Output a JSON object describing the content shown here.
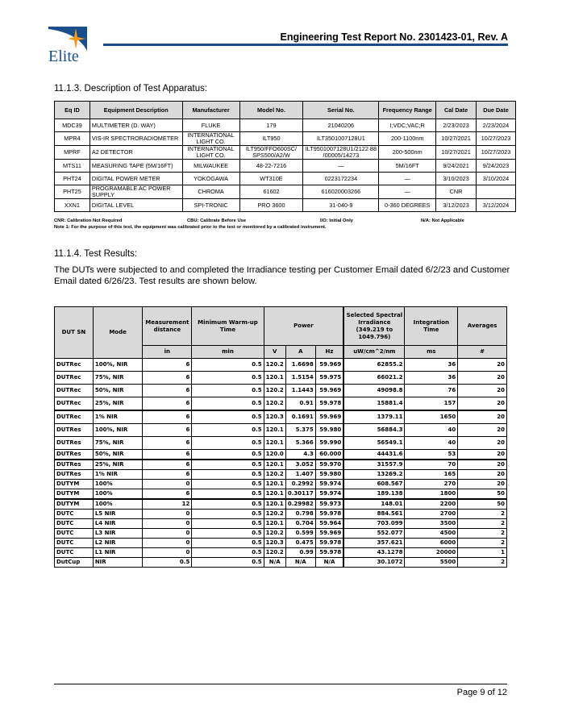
{
  "header": {
    "logo_text": "Elite",
    "title": "Engineering Test Report No. 2301423-01, Rev. A"
  },
  "apparatus": {
    "heading": "11.1.3.  Description of Test Apparatus:",
    "columns": [
      "Eq ID",
      "Equipment Description",
      "Manufacturer",
      "Model No.",
      "Serial No.",
      "Frequency Range",
      "Cal Date",
      "Due Date"
    ],
    "rows": [
      [
        "MDC39",
        "MULTIMETER (D. WAY)",
        "FLUKE",
        "179",
        "21040206",
        "I;VDC;VAC;R",
        "2/23/2023",
        "2/23/2024"
      ],
      [
        "MPR4",
        "VIS-IR SPECTRORADIOMETER",
        "INTERNATIONAL LIGHT CO.",
        "ILT950",
        "ILT3501007128U1",
        "200-1100nm",
        "10/27/2021",
        "10/27/2023"
      ],
      [
        "MPRF",
        "A2 DETECTOR",
        "INTERNATIONAL LIGHT CO.",
        "ILT950/FFO600SC/ SPS500/A2/W",
        "ILT9501007128U1/2122 88 /00005/14273",
        "200-500nm",
        "10/27/2021",
        "10/27/2023"
      ],
      [
        "MTS11",
        "MEASURING TAPE (5M/16FT)",
        "MILWAUKEE",
        "48-22-7216",
        "—",
        "5M/16FT",
        "9/24/2021",
        "9/24/2023"
      ],
      [
        "PHT24",
        "DIGITAL POWER METER",
        "YOKOGAWA",
        "WT310E",
        "0223172234",
        "—",
        "3/10/2023",
        "3/10/2024"
      ],
      [
        "PHT25",
        "PROGRAMABLE AC POWER SUPPLY",
        "CHROMA",
        "61602",
        "616020003266",
        "—",
        "CNR",
        ""
      ],
      [
        "XXN1",
        "DIGITAL LEVEL",
        "SPI-TRONIC",
        "PRO 3600",
        "31-040-9",
        "0-360 DEGREES",
        "3/12/2023",
        "3/12/2024"
      ]
    ],
    "legend": [
      "CNR: Calibration Not Required",
      "CBU: Calibrate Before Use",
      "I/O: Initial Only",
      "N/A: Not Applicable"
    ],
    "note": "Note 1: For the purpose of this test, the equipment was calibrated prior to the test or monitored by a calibrated instrument."
  },
  "results": {
    "heading": "11.1.4.  Test Results:",
    "intro": "The DUTs were subjected to and completed the Irradiance testing per Customer Email dated 6/2/23 and Customer Email dated 6/26/23. Test results are shown below.",
    "headers": {
      "dut_sn": "DUT SN",
      "mode": "Mode",
      "distance": "Measurement distance",
      "warmup": "Minimum Warm-up Time",
      "power": "Power",
      "irradiance": "Selected Spectral Irradiance (349.219 to 1049.796)",
      "integration": "Integration Time",
      "averages": "Averages"
    },
    "units": [
      "in",
      "min",
      "V",
      "A",
      "Hz",
      "uW/cm^2/nm",
      "ms",
      "#"
    ],
    "rows": [
      [
        "DUTRec",
        "100%, NIR",
        "6",
        "0.5",
        "120.2",
        "1.6698",
        "59.969",
        "62855.2",
        "36",
        "20"
      ],
      [
        "DUTRec",
        "75%, NIR",
        "6",
        "0.5",
        "120.1",
        "1.5154",
        "59.975",
        "66021.2",
        "36",
        "20"
      ],
      [
        "DUTRec",
        "50%, NIR",
        "6",
        "0.5",
        "120.2",
        "1.1443",
        "59.969",
        "49098.8",
        "76",
        "20"
      ],
      [
        "DUTRec",
        "25%, NIR",
        "6",
        "0.5",
        "120.2",
        "0.91",
        "59.978",
        "15881.4",
        "157",
        "20"
      ],
      [
        "DUTRec",
        "1% NIR",
        "6",
        "0.5",
        "120.3",
        "0.1691",
        "59.969",
        "1379.11",
        "1650",
        "20"
      ],
      [
        "DUTRes",
        "100%, NIR",
        "6",
        "0.5",
        "120.1",
        "5.375",
        "59.980",
        "56884.3",
        "40",
        "20"
      ],
      [
        "DUTRes",
        "75%, NIR",
        "6",
        "0.5",
        "120.1",
        "5.366",
        "59.990",
        "56549.1",
        "40",
        "20"
      ],
      [
        "DUTRes",
        "50%, NIR",
        "6",
        "0.5",
        "120.0",
        "4.3",
        "60.000",
        "44431.6",
        "53",
        "20"
      ],
      [
        "DUTRes",
        "25%, NIR",
        "6",
        "0.5",
        "120.1",
        "3.052",
        "59.970",
        "31557.9",
        "70",
        "20"
      ],
      [
        "DUTRes",
        "1% NIR",
        "6",
        "0.5",
        "120.2",
        "1.407",
        "59.980",
        "13269.2",
        "165",
        "20"
      ],
      [
        "DUTYM",
        "100%",
        "0",
        "0.5",
        "120.1",
        "0.2992",
        "59.974",
        "608.567",
        "270",
        "20"
      ],
      [
        "DUTYM",
        "100%",
        "6",
        "0.5",
        "120.1",
        "0.30117",
        "59.974",
        "189.138",
        "1800",
        "50"
      ],
      [
        "DUTYM",
        "100%",
        "12",
        "0.5",
        "120.1",
        "0.29982",
        "59.973",
        "148.01",
        "2200",
        "50"
      ],
      [
        "DUTC",
        "L5 NIR",
        "0",
        "0.5",
        "120.2",
        "0.798",
        "59.978",
        "884.561",
        "2700",
        "2"
      ],
      [
        "DUTC",
        "L4 NIR",
        "0",
        "0.5",
        "120.1",
        "0.704",
        "59.964",
        "703.099",
        "3500",
        "2"
      ],
      [
        "DUTC",
        "L3 NIR",
        "0",
        "0.5",
        "120.2",
        "0.599",
        "59.969",
        "552.077",
        "4500",
        "2"
      ],
      [
        "DUTC",
        "L2 NIR",
        "0",
        "0.5",
        "120.3",
        "0.475",
        "59.978",
        "357.621",
        "6000",
        "2"
      ],
      [
        "DUTC",
        "L1 NIR",
        "0",
        "0.5",
        "120.2",
        "0.99",
        "59.978",
        "43.1278",
        "20000",
        "1"
      ],
      [
        "DutCup",
        "NIR",
        "0.5",
        "0.5",
        "N/A",
        "N/A",
        "N/A",
        "30.1072",
        "5500",
        "2"
      ]
    ]
  },
  "footer": {
    "page": "Page 9 of 12"
  },
  "colors": {
    "brand_blue": "#1a4d8c",
    "star_orange": "#f39a1e",
    "header_fill": "#d9d9d9"
  }
}
